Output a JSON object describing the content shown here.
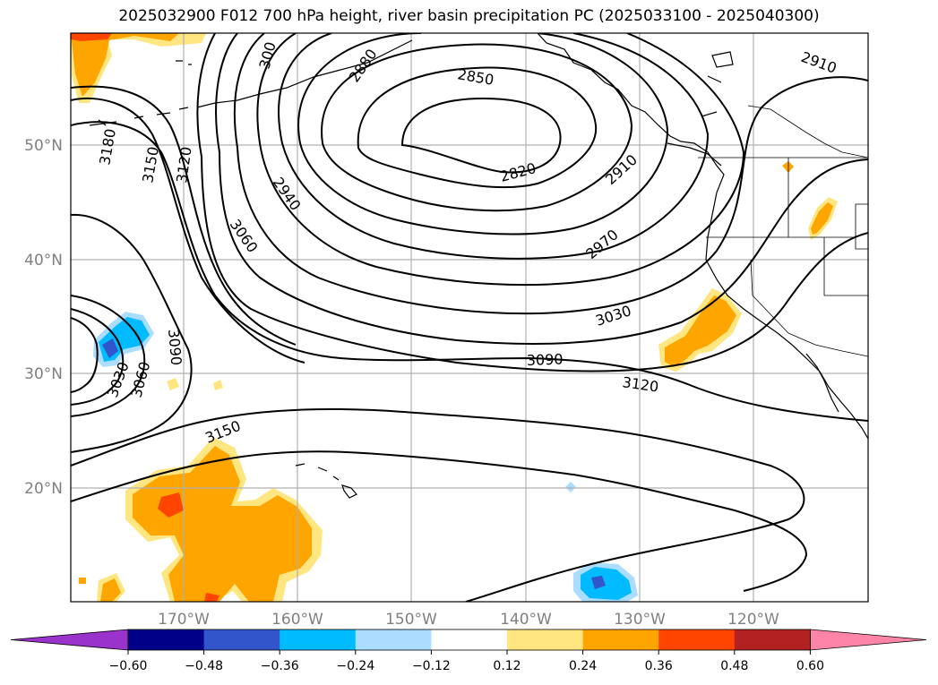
{
  "title": "2025032900 F012 700 hPa height, river basin precipitation PC (2025033100 - 2025040300)",
  "lat_ticks": [
    {
      "label": "50°N",
      "lat": 50
    },
    {
      "label": "40°N",
      "lat": 40
    },
    {
      "label": "30°N",
      "lat": 30
    },
    {
      "label": "20°N",
      "lat": 20
    }
  ],
  "lon_ticks": [
    {
      "label": "170°W",
      "lon": -170
    },
    {
      "label": "160°W",
      "lon": -160
    },
    {
      "label": "150°W",
      "lon": -150
    },
    {
      "label": "140°W",
      "lon": -140
    },
    {
      "label": "130°W",
      "lon": -130
    },
    {
      "label": "120°W",
      "lon": -120
    }
  ],
  "contour_labels": [
    "3180",
    "3150",
    "3120",
    "300",
    "2880",
    "2850",
    "2820",
    "2910",
    "2940",
    "3060",
    "2970",
    "3030",
    "3090",
    "3120",
    "3090",
    "3060",
    "3030",
    "3150",
    "2910"
  ],
  "colorbar": {
    "ticks": [
      "−0.60",
      "−0.48",
      "−0.36",
      "−0.24",
      "−0.12",
      "0.12",
      "0.24",
      "0.36",
      "0.48",
      "0.60"
    ],
    "colors": [
      "#9933cc",
      "#000088",
      "#3355cc",
      "#00bbff",
      "#aaddff",
      "#ffffff",
      "#ffe680",
      "#ffa500",
      "#ff4500",
      "#b22222",
      "#ff85a8",
      "#ff85a8"
    ]
  }
}
